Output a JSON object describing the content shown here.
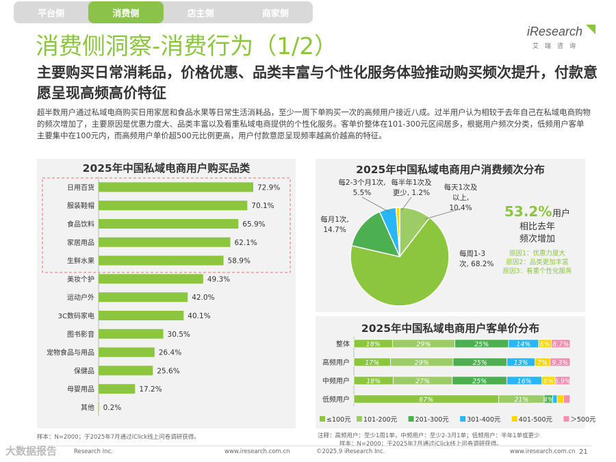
{
  "tabs": [
    {
      "label": "平台侧",
      "active": false
    },
    {
      "label": "消费侧",
      "active": true
    },
    {
      "label": "店主侧",
      "active": false
    },
    {
      "label": "商家侧",
      "active": false
    }
  ],
  "title": "消费侧洞察-消费行为（1/2）",
  "logo": {
    "name": "iResearch",
    "sub": "艾瑞咨询"
  },
  "subtitle": "主要购买日常消耗品，价格优惠、品类丰富与个性化服务体验推动购买频次提升，付款意愿呈现高频高价特征",
  "description": "超半数用户通过私域电商购买日用家居和食品水果等日常生活消耗品，至少一周下单购买一次的高频用户接近八成。过半用户认为相较于去年自己在私域电商购物的频次增加了，主要原因是优惠力度大、品类丰富以及看重私域电商提供的个性化服务。客单价整体在101-300元区间居多，根据用户频次分类，低频用户客单主要集中在100元内，而高频用户单价超500元比例更高，用户付款意愿呈现频率越高价越高的特征。",
  "colors": {
    "green": "#8cc63e",
    "dark_green": "#4caf50",
    "blue": "#29b6f6",
    "yellow": "#ffd600",
    "pink": "#f48fb1",
    "accent_text": "#8cc63e"
  },
  "chart_data": [
    {
      "type": "bar",
      "title": "2025年中国私域电商用户购买品类",
      "categories": [
        "日用百货",
        "服装鞋帽",
        "食品饮料",
        "家居用品",
        "生鲜水果",
        "美妆个护",
        "运动户外",
        "3C数码家电",
        "图书影音",
        "宠物食品与用品",
        "保健品",
        "母婴用品",
        "其他"
      ],
      "values": [
        72.9,
        70.1,
        65.9,
        62.1,
        58.9,
        49.3,
        42.0,
        40.1,
        30.5,
        26.4,
        25.6,
        17.2,
        0.2
      ],
      "value_labels": [
        "72.9%",
        "70.1%",
        "65.9%",
        "62.1%",
        "58.9%",
        "49.3%",
        "42.0%",
        "40.1%",
        "30.5%",
        "26.4%",
        "25.6%",
        "17.2%",
        "0.2%"
      ],
      "highlighted_count": 5,
      "xlim": [
        0,
        100
      ]
    },
    {
      "type": "pie",
      "title": "2025年中国私域电商用户消费频次分布",
      "slices": [
        {
          "label": "每天1次及以上",
          "value": 10.4,
          "color": "#9ccc65"
        },
        {
          "label": "每周1-3次",
          "value": 68.2,
          "color": "#8cc63e"
        },
        {
          "label": "每月1次",
          "value": 14.7,
          "color": "#4caf50"
        },
        {
          "label": "每2-3个月1次",
          "value": 5.5,
          "color": "#29b6f6"
        },
        {
          "label": "每半年1次及更少",
          "value": 1.2,
          "color": "#ffd600"
        }
      ],
      "label_texts": {
        "daily": [
          "每天1次及",
          "以上,",
          "10.4%"
        ],
        "weekly": [
          "每周1-3",
          "次, 68.2%"
        ],
        "monthly": [
          "每月1次,",
          "14.7%"
        ],
        "bimonthly": [
          "每2-3个月1次,",
          "5.5%"
        ],
        "halfyear": [
          "每半年1次及",
          "更少, 1.2%"
        ]
      },
      "callout": {
        "big": "53.2%",
        "unit": "用户",
        "line2": "相比去年",
        "line3": "频次增加",
        "reasons": [
          "原因1：优惠力度大",
          "原因2：品类更加丰富",
          "原因3：看重个性化服务"
        ]
      }
    },
    {
      "type": "bar",
      "stacked": true,
      "orientation": "horizontal",
      "title": "2025年中国私域电商用户客单价分布",
      "categories": [
        "整体",
        "高频用户",
        "中频用户",
        "低频用户"
      ],
      "series": [
        {
          "name": "≤100元",
          "values": [
            18,
            17,
            18,
            67
          ],
          "labels": [
            "18%",
            "17%",
            "18%",
            "67%"
          ],
          "color": "#8cc63e"
        },
        {
          "name": "101-200元",
          "values": [
            29,
            29,
            27,
            21
          ],
          "labels": [
            "29%",
            "29%",
            "27%",
            "21%"
          ],
          "color": "#9ccc65"
        },
        {
          "name": "201-300元",
          "values": [
            25,
            25,
            25,
            4
          ],
          "labels": [
            "25%",
            "25%",
            "25%",
            "4%"
          ],
          "color": "#4caf50"
        },
        {
          "name": "301-400元",
          "values": [
            14,
            13,
            16,
            2
          ],
          "labels": [
            "14%",
            "13%",
            "16%",
            ""
          ],
          "color": "#29b6f6"
        },
        {
          "name": "401-500元",
          "values": [
            6,
            7,
            6,
            3
          ],
          "labels": [
            "6%",
            "7%",
            "6%",
            ""
          ],
          "color": "#ffd600"
        },
        {
          "name": "＞500元",
          "values": [
            8.7,
            9.3,
            6.9,
            3
          ],
          "labels": [
            "8.7%",
            "9.3%",
            "6.9%",
            ""
          ],
          "color": "#f48fb1"
        }
      ],
      "xlim": [
        0,
        100
      ]
    }
  ],
  "footnotes": {
    "left_sample": "样本：N=2000；于2025年7月通过iClick线上问卷调研获得。",
    "right_note_1": "注释：高频用户：至少1周1单，中频用户：至少2-3月1单；低频用户：半年1单或更少",
    "right_note_2": "样本：N=2000；于2025年7月通过iClick线上问卷调研获得。",
    "left_brand": "Research Inc.",
    "left_url": "www.iresearch.com.cn",
    "mid_brand": "©2025.9 iResearch Inc.",
    "right_url": "www.iresearch.com.cn",
    "page_number": "21"
  },
  "watermark": "大数据报告"
}
